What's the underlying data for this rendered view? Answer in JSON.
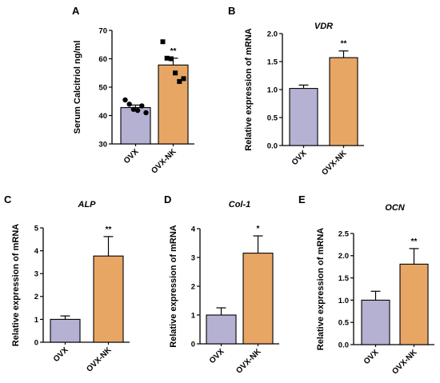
{
  "colors": {
    "OVX": "#b4b1d3",
    "OVX-NK": "#e8a665",
    "stroke": "#000000"
  },
  "chart_data": [
    {
      "panel": "A",
      "type": "bar",
      "title": "",
      "ylabel": "Serum Calcitriol  ng/ml",
      "categories": [
        "OVX",
        "OVX-NK"
      ],
      "values": [
        42.8,
        57.8
      ],
      "errors": [
        0.9,
        2.4
      ],
      "ylim": [
        30,
        70
      ],
      "yticks": [
        30,
        40,
        50,
        60,
        70
      ],
      "significance": [
        null,
        "**"
      ],
      "points": [
        {
          "marker": "circle",
          "values": [
            45.5,
            44.0,
            42.2,
            41.8,
            43.4,
            41.0
          ]
        },
        {
          "marker": "square",
          "values": [
            66.0,
            60.2,
            60.0,
            55.0,
            52.0,
            53.0
          ]
        }
      ]
    },
    {
      "panel": "B",
      "type": "bar",
      "title": "VDR",
      "ylabel": "Relative expression of mRNA",
      "categories": [
        "OVX",
        "OVX-NK"
      ],
      "values": [
        1.02,
        1.57
      ],
      "errors": [
        0.06,
        0.12
      ],
      "ylim": [
        0,
        2.0
      ],
      "yticks": [
        "0.0",
        "0.5",
        "1.0",
        "1.5",
        "2.0"
      ],
      "significance": [
        null,
        "**"
      ]
    },
    {
      "panel": "C",
      "type": "bar",
      "title": "ALP",
      "ylabel": "Relative expression of mRNA",
      "categories": [
        "OVX",
        "OVX-NK"
      ],
      "values": [
        1.0,
        3.77
      ],
      "errors": [
        0.15,
        0.85
      ],
      "ylim": [
        0,
        5
      ],
      "yticks": [
        "0",
        "1",
        "2",
        "3",
        "4",
        "5"
      ],
      "significance": [
        null,
        "**"
      ]
    },
    {
      "panel": "D",
      "type": "bar",
      "title": "Col-1",
      "ylabel": "Relative expression of mRNA",
      "categories": [
        "OVX",
        "OVX-NK"
      ],
      "values": [
        1.0,
        3.15
      ],
      "errors": [
        0.25,
        0.6
      ],
      "ylim": [
        0,
        4
      ],
      "yticks": [
        "0",
        "1",
        "2",
        "3",
        "4"
      ],
      "significance": [
        null,
        "*"
      ]
    },
    {
      "panel": "E",
      "type": "bar",
      "title": "OCN",
      "ylabel": "Relative expression of mRNA",
      "categories": [
        "OVX",
        "OVX-NK"
      ],
      "values": [
        1.0,
        1.81
      ],
      "errors": [
        0.2,
        0.35
      ],
      "ylim": [
        0,
        2.5
      ],
      "yticks": [
        "0.0",
        "0.5",
        "1.0",
        "1.5",
        "2.0",
        "2.5"
      ],
      "significance": [
        null,
        "**"
      ]
    }
  ]
}
